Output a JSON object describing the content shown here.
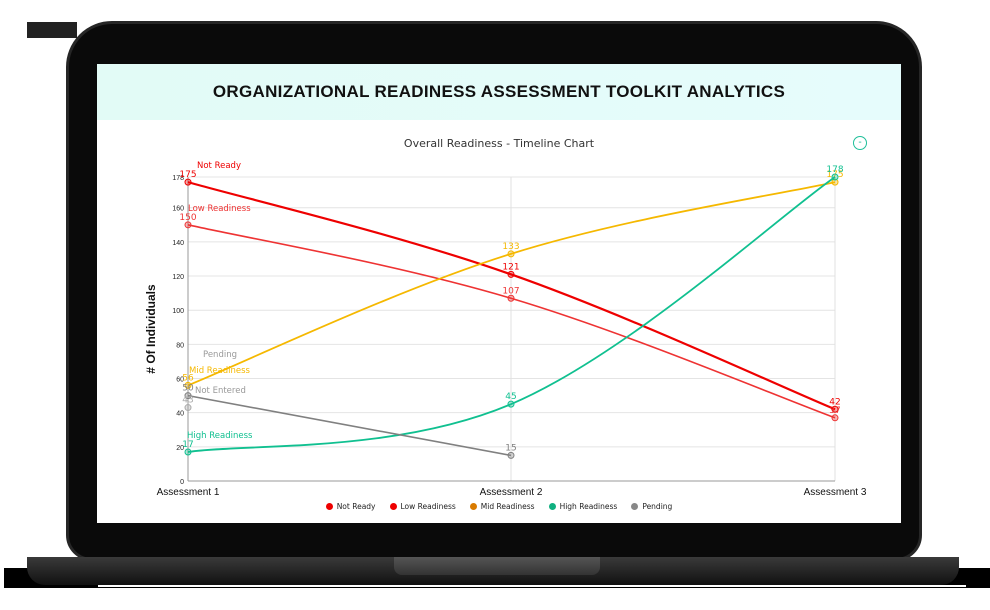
{
  "header": {
    "title": "ORGANIZATIONAL READINESS ASSESSMENT TOOLKIT ANALYTICS"
  },
  "chart_panel": {
    "title": "Overall Readiness - Timeline Chart",
    "collapse_icon": "-"
  },
  "chart_data": {
    "type": "line",
    "title": "Overall Readiness - Timeline Chart",
    "xlabel": "",
    "ylabel": "# Of Individuals",
    "categories": [
      "Assessment 1",
      "Assessment 2",
      "Assessment 3"
    ],
    "ylim": [
      0,
      178
    ],
    "yticks": [
      0,
      20,
      40,
      60,
      80,
      100,
      120,
      140,
      160,
      178
    ],
    "grid": true,
    "legend_position": "bottom",
    "series": [
      {
        "name": "Not Ready",
        "color": "#ee0000",
        "values": [
          175,
          121,
          42
        ]
      },
      {
        "name": "Low Readiness",
        "color": "#ee3333",
        "values": [
          150,
          107,
          37
        ]
      },
      {
        "name": "Mid Readiness",
        "color": "#f5b800",
        "values": [
          56,
          133,
          175
        ]
      },
      {
        "name": "High Readiness",
        "color": "#10c090",
        "values": [
          17,
          45,
          178
        ]
      },
      {
        "name": "Pending",
        "color": "#808080",
        "values": [
          50,
          15,
          null
        ]
      },
      {
        "name": "Not Entered",
        "color": "#aaaaaa",
        "values": [
          43,
          null,
          null
        ]
      }
    ],
    "annotations": [
      "Not Ready",
      "Low Readiness",
      "Pending",
      "Mid Readiness",
      "Not Entered",
      "High Readiness"
    ]
  },
  "legend": [
    {
      "label": "Not Ready",
      "color": "#ee0000"
    },
    {
      "label": "Low Readiness",
      "color": "#ee0000"
    },
    {
      "label": "Mid Readiness",
      "color": "#d97b00"
    },
    {
      "label": "High Readiness",
      "color": "#10b080"
    },
    {
      "label": "Pending",
      "color": "#888888"
    }
  ]
}
